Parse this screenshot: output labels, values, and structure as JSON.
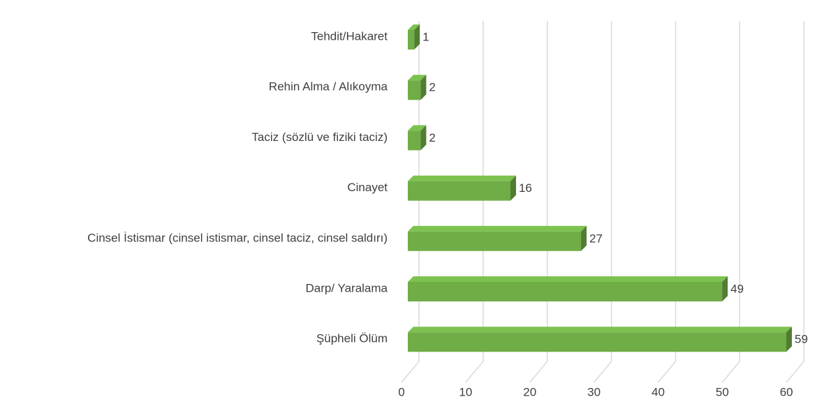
{
  "chart_data": {
    "type": "bar3d_horizontal",
    "categories": [
      "Tehdit/Hakaret",
      "Rehin Alma / Alıkoyma",
      "Taciz (sözlü ve fiziki taciz)",
      "Cinayet",
      "Cinsel İstismar (cinsel istismar, cinsel taciz, cinsel saldırı)",
      "Darp/ Yaralama",
      "Şüpheli Ölüm"
    ],
    "values": [
      1,
      2,
      2,
      16,
      27,
      49,
      59
    ],
    "color": "#70ad47",
    "xlim": [
      0,
      60
    ],
    "xticks": [
      0,
      10,
      20,
      30,
      40,
      50,
      60
    ],
    "grid": true
  }
}
